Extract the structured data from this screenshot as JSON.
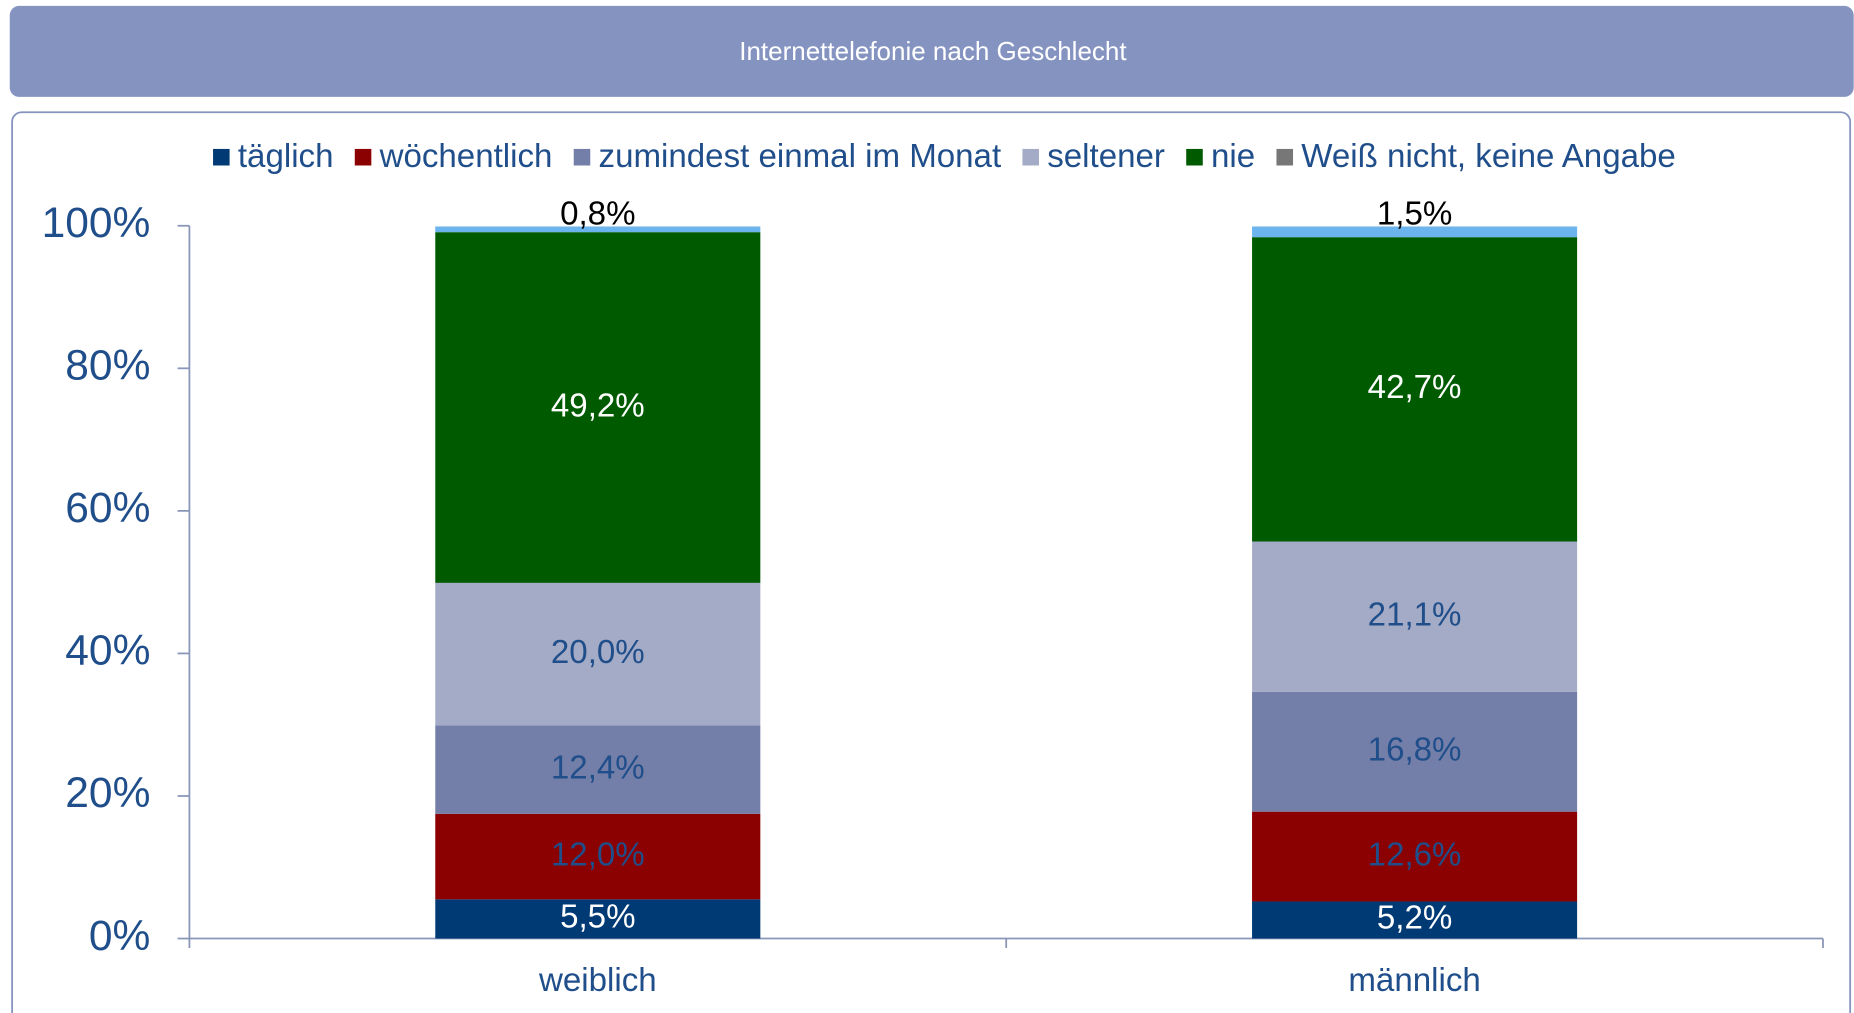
{
  "chart_data": {
    "type": "stacked_bar",
    "title": "Internettelefonie nach Geschlecht",
    "categories": [
      "weiblich",
      "männlich"
    ],
    "series": [
      {
        "name": "täglich",
        "color": "#003a75",
        "label_color": "#ffffff",
        "values": [
          5.5,
          5.2
        ],
        "value_labels": [
          "5,5%",
          "5,2%"
        ]
      },
      {
        "name": "wöchentlich",
        "color": "#8b0000",
        "label_color": "#1f4e8a",
        "values": [
          12.0,
          12.6
        ],
        "value_labels": [
          "12,0%",
          "12,6%"
        ]
      },
      {
        "name": "zumindest einmal im Monat",
        "color": "#737fa8",
        "label_color": "#1f4e8a",
        "values": [
          12.4,
          16.8
        ],
        "value_labels": [
          "12,4%",
          "16,8%"
        ]
      },
      {
        "name": "seltener",
        "color": "#a4abc6",
        "label_color": "#1f4e8a",
        "values": [
          20.0,
          21.1
        ],
        "value_labels": [
          "20,0%",
          "21,1%"
        ]
      },
      {
        "name": "nie",
        "color": "#005a00",
        "label_color": "#ffffff",
        "values": [
          49.2,
          42.7
        ],
        "value_labels": [
          "49,2%",
          "42,7%"
        ]
      },
      {
        "name": "Weiß nicht, keine Angabe",
        "color": "#6cb4ee",
        "legend_color": "#777777",
        "label_color": "#000000",
        "values": [
          0.8,
          1.5
        ],
        "value_labels": [
          "0,8%",
          "1,5%"
        ]
      }
    ],
    "ylim": [
      0,
      100
    ],
    "yticks": [
      {
        "value": 0,
        "label": "0%"
      },
      {
        "value": 20,
        "label": "20%"
      },
      {
        "value": 40,
        "label": "40%"
      },
      {
        "value": 60,
        "label": "60%"
      },
      {
        "value": 80,
        "label": "80%"
      },
      {
        "value": 100,
        "label": "100%"
      }
    ]
  }
}
